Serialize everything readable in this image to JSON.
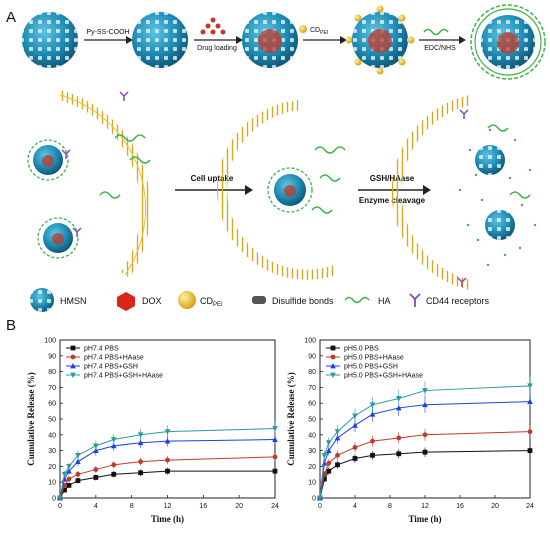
{
  "panel_a": {
    "label": "A",
    "steps": {
      "py": "Py-SS-COOH",
      "drug": "Drug loading",
      "cd": "CD",
      "cd_sub": "PEI",
      "edc": "EDC/NHS"
    },
    "cell_uptake": "Cell uptake",
    "gsh": "GSH/HAase",
    "enzyme": "Enzyme cleavage"
  },
  "legend": {
    "hmsn": "HMSN",
    "dox": "DOX",
    "cd": "CD",
    "cd_sub": "PEI",
    "ss": "Disulfide bonds",
    "ha": "HA",
    "cd44": "CD44 receptors"
  },
  "panel_b": {
    "label": "B"
  },
  "colors": {
    "sphere": "#2a9ec4",
    "ha_green": "#3cb44b",
    "membrane": "#e9c23a",
    "receptor": "#8e44ad",
    "dox": "#d9261c",
    "cd": "#f0c020"
  },
  "chart_data": [
    {
      "type": "line",
      "xlabel": "Time (h)",
      "ylabel": "Cumulative Release (%)",
      "xlim": [
        0,
        24
      ],
      "ylim": [
        0,
        100
      ],
      "xticks": [
        "0",
        "4",
        "8",
        "12",
        "16",
        "20",
        "24"
      ],
      "yticks": [
        "0",
        "10",
        "20",
        "30",
        "40",
        "50",
        "60",
        "70",
        "80",
        "90",
        "100"
      ],
      "legend_position": "top-left",
      "x": [
        0,
        0.5,
        1,
        2,
        4,
        6,
        9,
        12,
        24
      ],
      "series": [
        {
          "name": "pH7.4 PBS",
          "color": "#111111",
          "marker": "square",
          "values": [
            0,
            5,
            8,
            11,
            13,
            15,
            16,
            17,
            17
          ]
        },
        {
          "name": "pH7.4 PBS+HAase",
          "color": "#c0392b",
          "marker": "circle",
          "values": [
            0,
            8,
            12,
            15,
            18,
            21,
            23,
            24,
            26
          ]
        },
        {
          "name": "pH7.4 PBS+GSH",
          "color": "#1f3fe0",
          "marker": "triangle-up",
          "values": [
            0,
            12,
            17,
            23,
            30,
            33,
            35,
            36,
            37
          ]
        },
        {
          "name": "pH7.4 PBS+GSH+HAase",
          "color": "#2a9aa0",
          "marker": "triangle-down",
          "values": [
            0,
            15,
            20,
            27,
            33,
            37,
            40,
            42,
            44
          ]
        }
      ]
    },
    {
      "type": "line",
      "xlabel": "Time (h)",
      "ylabel": "Cumulative Release (%)",
      "xlim": [
        0,
        24
      ],
      "ylim": [
        0,
        100
      ],
      "xticks": [
        "0",
        "4",
        "8",
        "12",
        "16",
        "20",
        "24"
      ],
      "yticks": [
        "0",
        "10",
        "20",
        "30",
        "40",
        "50",
        "60",
        "70",
        "80",
        "90",
        "100"
      ],
      "legend_position": "top-left",
      "x": [
        0,
        0.5,
        1,
        2,
        4,
        6,
        9,
        12,
        24
      ],
      "series": [
        {
          "name": "pH5.0 PBS",
          "color": "#111111",
          "marker": "square",
          "values": [
            0,
            12,
            17,
            21,
            25,
            27,
            28,
            29,
            30
          ]
        },
        {
          "name": "pH5.0 PBS+HAase",
          "color": "#c0392b",
          "marker": "circle",
          "values": [
            0,
            15,
            22,
            27,
            32,
            36,
            38,
            40,
            42
          ]
        },
        {
          "name": "pH5.0 PBS+GSH",
          "color": "#1f3fe0",
          "marker": "triangle-up",
          "values": [
            0,
            22,
            30,
            38,
            46,
            53,
            57,
            59,
            61
          ]
        },
        {
          "name": "pH5.0 PBS+GSH+HAase",
          "color": "#2a9aa0",
          "marker": "triangle-down",
          "values": [
            0,
            27,
            35,
            42,
            52,
            59,
            63,
            68,
            71
          ]
        }
      ]
    }
  ]
}
